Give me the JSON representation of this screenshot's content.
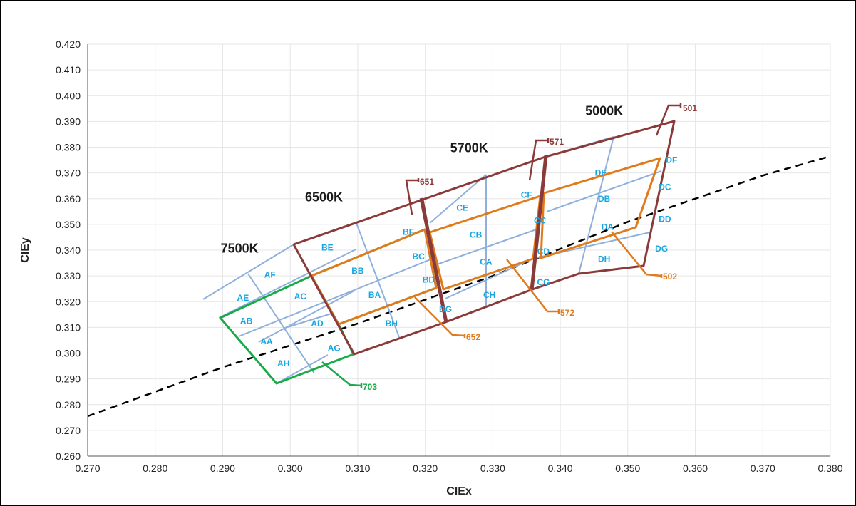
{
  "chart_data": {
    "type": "line",
    "xlabel": "CIEx",
    "ylabel": "CIEy",
    "xlim": [
      0.27,
      0.38
    ],
    "ylim": [
      0.26,
      0.42
    ],
    "x_ticks": [
      "0.270",
      "0.280",
      "0.290",
      "0.300",
      "0.310",
      "0.320",
      "0.330",
      "0.340",
      "0.350",
      "0.360",
      "0.370",
      "0.380"
    ],
    "y_ticks": [
      "0.260",
      "0.270",
      "0.280",
      "0.290",
      "0.300",
      "0.310",
      "0.320",
      "0.330",
      "0.340",
      "0.350",
      "0.360",
      "0.370",
      "0.380",
      "0.390",
      "0.400",
      "0.410",
      "0.420"
    ],
    "grid": true,
    "colors": {
      "blackbody": "#000000",
      "cct_outline": "#8b3a3a",
      "green": "#1aaa4a",
      "orange": "#e07a1a",
      "blue": "#8fb0dc",
      "bin_text": "#19a6e0"
    },
    "blackbody_locus": [
      [
        0.27,
        0.2755
      ],
      [
        0.29,
        0.2945
      ],
      [
        0.31,
        0.3115
      ],
      [
        0.33,
        0.33
      ],
      [
        0.35,
        0.351
      ],
      [
        0.37,
        0.369
      ],
      [
        0.38,
        0.3765
      ]
    ],
    "cct_labels": [
      {
        "text": "7500K",
        "x": 0.2925,
        "y": 0.339
      },
      {
        "text": "6500K",
        "x": 0.305,
        "y": 0.359
      },
      {
        "text": "5700K",
        "x": 0.3265,
        "y": 0.378
      },
      {
        "text": "5000K",
        "x": 0.3465,
        "y": 0.3925
      }
    ],
    "bins": [
      {
        "text": "AE",
        "x": 0.293,
        "y": 0.3215
      },
      {
        "text": "AF",
        "x": 0.297,
        "y": 0.3305
      },
      {
        "text": "AB",
        "x": 0.2935,
        "y": 0.3125
      },
      {
        "text": "AC",
        "x": 0.3015,
        "y": 0.322
      },
      {
        "text": "AA",
        "x": 0.2965,
        "y": 0.3045
      },
      {
        "text": "AD",
        "x": 0.304,
        "y": 0.3115
      },
      {
        "text": "AH",
        "x": 0.299,
        "y": 0.296
      },
      {
        "text": "AG",
        "x": 0.3065,
        "y": 0.302
      },
      {
        "text": "BE",
        "x": 0.3055,
        "y": 0.341
      },
      {
        "text": "BF",
        "x": 0.3175,
        "y": 0.347
      },
      {
        "text": "BB",
        "x": 0.31,
        "y": 0.332
      },
      {
        "text": "BC",
        "x": 0.319,
        "y": 0.3375
      },
      {
        "text": "BA",
        "x": 0.3125,
        "y": 0.3225
      },
      {
        "text": "BD",
        "x": 0.3205,
        "y": 0.3285
      },
      {
        "text": "BH",
        "x": 0.315,
        "y": 0.3115
      },
      {
        "text": "BG",
        "x": 0.323,
        "y": 0.317
      },
      {
        "text": "CE",
        "x": 0.3255,
        "y": 0.3565
      },
      {
        "text": "CF",
        "x": 0.335,
        "y": 0.3615
      },
      {
        "text": "CB",
        "x": 0.3275,
        "y": 0.346
      },
      {
        "text": "CC",
        "x": 0.337,
        "y": 0.3515
      },
      {
        "text": "CA",
        "x": 0.329,
        "y": 0.3355
      },
      {
        "text": "CD",
        "x": 0.3375,
        "y": 0.3395
      },
      {
        "text": "CH",
        "x": 0.3295,
        "y": 0.3225
      },
      {
        "text": "CG",
        "x": 0.3375,
        "y": 0.3275
      },
      {
        "text": "DE",
        "x": 0.346,
        "y": 0.37
      },
      {
        "text": "DF",
        "x": 0.3565,
        "y": 0.375
      },
      {
        "text": "DB",
        "x": 0.3465,
        "y": 0.36
      },
      {
        "text": "DC",
        "x": 0.3555,
        "y": 0.3645
      },
      {
        "text": "DA",
        "x": 0.347,
        "y": 0.349
      },
      {
        "text": "DD",
        "x": 0.3555,
        "y": 0.352
      },
      {
        "text": "DH",
        "x": 0.3465,
        "y": 0.3365
      },
      {
        "text": "DG",
        "x": 0.355,
        "y": 0.3405
      }
    ],
    "callouts": [
      {
        "text": "501",
        "color": "brown"
      },
      {
        "text": "571",
        "color": "brown"
      },
      {
        "text": "651",
        "color": "brown"
      },
      {
        "text": "502",
        "color": "orange"
      },
      {
        "text": "572",
        "color": "orange"
      },
      {
        "text": "652",
        "color": "orange"
      },
      {
        "text": "703",
        "color": "green"
      }
    ]
  }
}
